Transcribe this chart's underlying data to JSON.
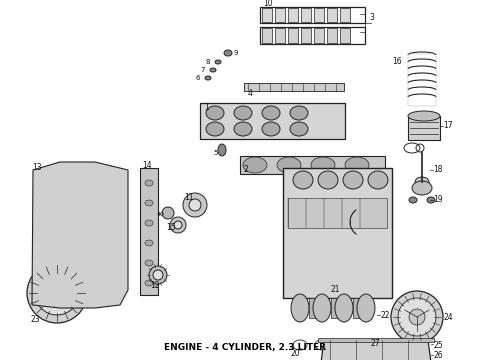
{
  "caption": "ENGINE - 4 CYLINDER, 2.3 LITER",
  "caption_fontsize": 6.5,
  "caption_fontweight": "bold",
  "background_color": "#ffffff",
  "lc": "#222222",
  "figsize": [
    4.9,
    3.6
  ],
  "dpi": 100,
  "label_fs": 5.2,
  "label_color": "#111111"
}
